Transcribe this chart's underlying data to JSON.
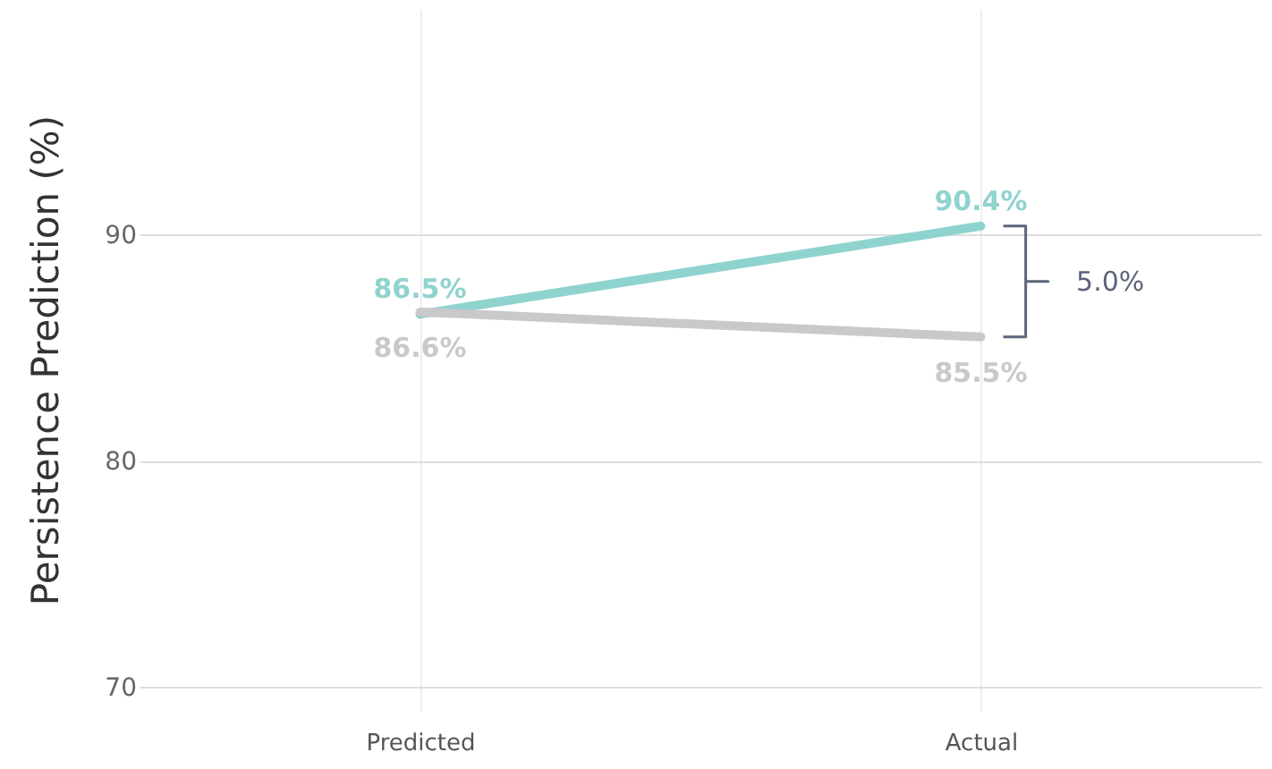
{
  "chart_data": {
    "type": "line",
    "ylabel": "Persistence Prediction (%)",
    "categories": [
      "Predicted",
      "Actual"
    ],
    "series": [
      {
        "color": "#8fd3cf",
        "values": [
          86.5,
          90.4
        ],
        "value_labels": [
          "86.5%",
          "90.4%"
        ]
      },
      {
        "color": "#c9c9cb",
        "values": [
          86.6,
          85.5
        ],
        "value_labels": [
          "86.6%",
          "85.5%"
        ]
      }
    ],
    "ylim": [
      69,
      100
    ],
    "yticks": [
      70,
      80,
      90
    ],
    "grid": true,
    "annotations": [
      "5.0%"
    ]
  }
}
